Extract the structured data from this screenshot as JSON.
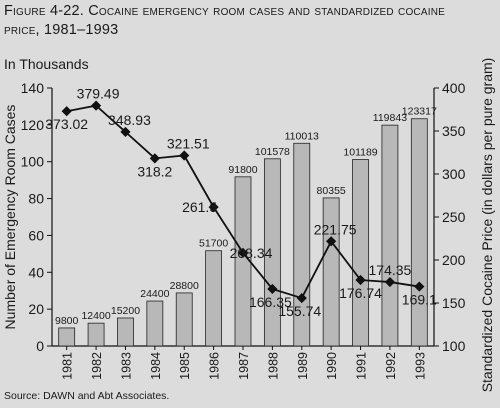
{
  "title_lines": [
    "Figure 4-22. Cocaine emergency room cases and standardized cocaine",
    "price, 1981–1993"
  ],
  "unit_label": "In Thousands",
  "source": "Source: DAWN and Abt Associates.",
  "colors": {
    "background": "#dcdcdc",
    "bar_fill": "#b8b8b8",
    "bar_stroke": "#222222",
    "line": "#111111"
  },
  "chart_data": {
    "type": "bar",
    "categories": [
      "1981",
      "1982",
      "1983",
      "1984",
      "1985",
      "1986",
      "1987",
      "1988",
      "1989",
      "1990",
      "1991",
      "1992",
      "1993"
    ],
    "series": [
      {
        "type": "bar",
        "axis": "left",
        "values": [
          9800,
          12400,
          15200,
          24400,
          28800,
          51700,
          91800,
          101578,
          110013,
          80355,
          101189,
          119843,
          123317
        ],
        "labels": [
          "9800",
          "12400",
          "15200",
          "24400",
          "28800",
          "51700",
          "91800",
          "101578",
          "110013",
          "80355",
          "101189",
          "119843",
          "123317"
        ]
      },
      {
        "type": "line",
        "axis": "right",
        "values": [
          373.02,
          379.49,
          348.93,
          318.2,
          321.51,
          261.5,
          208.34,
          166.35,
          155.74,
          221.75,
          176.74,
          174.35,
          169.1
        ],
        "labels": [
          "373.02",
          "379.49",
          "348.93",
          "318.2",
          "321.51",
          "261.5",
          "208.34",
          "166.35",
          "155.74",
          "221.75",
          "176.74",
          "174.35",
          "169.1"
        ]
      }
    ],
    "ylabel": "Number of Emergency Room Cases",
    "y2label": "Standardized Cocaine Price (in dollars per pure gram)",
    "ylim": [
      0,
      140
    ],
    "y2lim": [
      100,
      400
    ],
    "yticks": [
      "0",
      "20",
      "40",
      "60",
      "80",
      "100",
      "120",
      "140"
    ],
    "y2ticks": [
      "100",
      "150",
      "200",
      "250",
      "300",
      "350",
      "400"
    ],
    "left_scale_divisor": 1000,
    "grid": false
  }
}
